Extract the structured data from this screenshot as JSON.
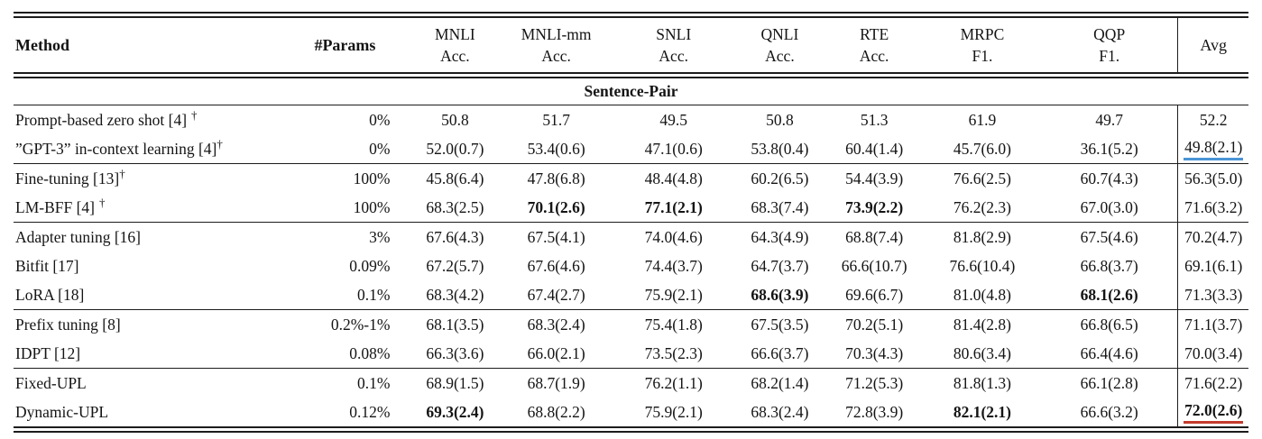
{
  "page": {
    "background": "#ffffff",
    "text_color": "#141414",
    "rule_color": "#1c1c1c"
  },
  "highlights": {
    "blue_underline": "#4a94d6",
    "red_underline": "#c53b2c"
  },
  "table": {
    "section_header": "Sentence-Pair",
    "columns": [
      {
        "id": "method",
        "label": "Method"
      },
      {
        "id": "params",
        "label": "#Params"
      },
      {
        "id": "mnli",
        "label": "MNLI",
        "sub": "Acc."
      },
      {
        "id": "mnli-mm",
        "label": "MNLI-mm",
        "sub": "Acc."
      },
      {
        "id": "snli",
        "label": "SNLI",
        "sub": "Acc."
      },
      {
        "id": "qnli",
        "label": "QNLI",
        "sub": "Acc."
      },
      {
        "id": "rte",
        "label": "RTE",
        "sub": "Acc."
      },
      {
        "id": "mrpc",
        "label": "MRPC",
        "sub": "F1."
      },
      {
        "id": "qqp",
        "label": "QQP",
        "sub": "F1."
      },
      {
        "id": "avg",
        "label": "Avg"
      }
    ],
    "groups": [
      {
        "rows": [
          {
            "method": "Prompt-based zero shot [4]",
            "dagger": "†",
            "dagger_space": true,
            "params": "0%",
            "cells": [
              {
                "t": "50.8"
              },
              {
                "t": "51.7"
              },
              {
                "t": "49.5"
              },
              {
                "t": "50.8"
              },
              {
                "t": "51.3"
              },
              {
                "t": "61.9"
              },
              {
                "t": "49.7"
              }
            ],
            "avg": {
              "t": "52.2"
            }
          },
          {
            "method": "”GPT-3” in-context learning [4]",
            "dagger": "†",
            "dagger_space": false,
            "params": "0%",
            "cells": [
              {
                "t": "52.0(0.7)"
              },
              {
                "t": "53.4(0.6)"
              },
              {
                "t": "47.1(0.6)"
              },
              {
                "t": "53.8(0.4)"
              },
              {
                "t": "60.4(1.4)"
              },
              {
                "t": "45.7(6.0)"
              },
              {
                "t": "36.1(5.2)"
              }
            ],
            "avg": {
              "t": "49.8(2.1)",
              "u": "blue"
            }
          }
        ]
      },
      {
        "rows": [
          {
            "method": "Fine-tuning [13]",
            "dagger": "†",
            "dagger_space": false,
            "params": "100%",
            "cells": [
              {
                "t": "45.8(6.4)"
              },
              {
                "t": "47.8(6.8)"
              },
              {
                "t": "48.4(4.8)"
              },
              {
                "t": "60.2(6.5)"
              },
              {
                "t": "54.4(3.9)"
              },
              {
                "t": "76.6(2.5)"
              },
              {
                "t": "60.7(4.3)"
              }
            ],
            "avg": {
              "t": "56.3(5.0)"
            }
          },
          {
            "method": "LM-BFF [4]",
            "dagger": "†",
            "dagger_space": true,
            "params": "100%",
            "cells": [
              {
                "t": "68.3(2.5)"
              },
              {
                "t": "70.1(2.6)",
                "b": true
              },
              {
                "t": "77.1(2.1)",
                "b": true
              },
              {
                "t": "68.3(7.4)"
              },
              {
                "t": "73.9(2.2)",
                "b": true
              },
              {
                "t": "76.2(2.3)"
              },
              {
                "t": "67.0(3.0)"
              }
            ],
            "avg": {
              "t": "71.6(3.2)"
            }
          }
        ]
      },
      {
        "rows": [
          {
            "method": "Adapter tuning [16]",
            "dagger": "",
            "dagger_space": false,
            "params": "3%",
            "cells": [
              {
                "t": "67.6(4.3)"
              },
              {
                "t": "67.5(4.1)"
              },
              {
                "t": "74.0(4.6)"
              },
              {
                "t": "64.3(4.9)"
              },
              {
                "t": "68.8(7.4)"
              },
              {
                "t": "81.8(2.9)"
              },
              {
                "t": "67.5(4.6)"
              }
            ],
            "avg": {
              "t": "70.2(4.7)"
            }
          },
          {
            "method": "Bitfit [17]",
            "dagger": "",
            "dagger_space": false,
            "params": "0.09%",
            "cells": [
              {
                "t": "67.2(5.7)"
              },
              {
                "t": "67.6(4.6)"
              },
              {
                "t": "74.4(3.7)"
              },
              {
                "t": "64.7(3.7)"
              },
              {
                "t": "66.6(10.7)"
              },
              {
                "t": "76.6(10.4)"
              },
              {
                "t": "66.8(3.7)"
              }
            ],
            "avg": {
              "t": "69.1(6.1)"
            }
          },
          {
            "method": "LoRA [18]",
            "dagger": "",
            "dagger_space": false,
            "params": "0.1%",
            "cells": [
              {
                "t": "68.3(4.2)"
              },
              {
                "t": "67.4(2.7)"
              },
              {
                "t": "75.9(2.1)"
              },
              {
                "t": "68.6(3.9)",
                "b": true
              },
              {
                "t": "69.6(6.7)"
              },
              {
                "t": "81.0(4.8)"
              },
              {
                "t": "68.1(2.6)",
                "b": true
              }
            ],
            "avg": {
              "t": "71.3(3.3)"
            }
          }
        ]
      },
      {
        "rows": [
          {
            "method": "Prefix tuning [8]",
            "dagger": "",
            "dagger_space": false,
            "params": "0.2%-1%",
            "cells": [
              {
                "t": "68.1(3.5)"
              },
              {
                "t": "68.3(2.4)"
              },
              {
                "t": "75.4(1.8)"
              },
              {
                "t": "67.5(3.5)"
              },
              {
                "t": "70.2(5.1)"
              },
              {
                "t": "81.4(2.8)"
              },
              {
                "t": "66.8(6.5)"
              }
            ],
            "avg": {
              "t": "71.1(3.7)"
            }
          },
          {
            "method": "IDPT [12]",
            "dagger": "",
            "dagger_space": false,
            "params": "0.08%",
            "cells": [
              {
                "t": "66.3(3.6)"
              },
              {
                "t": "66.0(2.1)"
              },
              {
                "t": "73.5(2.3)"
              },
              {
                "t": "66.6(3.7)"
              },
              {
                "t": "70.3(4.3)"
              },
              {
                "t": "80.6(3.4)"
              },
              {
                "t": "66.4(4.6)"
              }
            ],
            "avg": {
              "t": "70.0(3.4)"
            }
          }
        ]
      },
      {
        "rows": [
          {
            "method": "Fixed-UPL",
            "dagger": "",
            "dagger_space": false,
            "params": "0.1%",
            "cells": [
              {
                "t": "68.9(1.5)"
              },
              {
                "t": "68.7(1.9)"
              },
              {
                "t": "76.2(1.1)"
              },
              {
                "t": "68.2(1.4)"
              },
              {
                "t": "71.2(5.3)"
              },
              {
                "t": "81.8(1.3)"
              },
              {
                "t": "66.1(2.8)"
              }
            ],
            "avg": {
              "t": "71.6(2.2)"
            }
          },
          {
            "method": "Dynamic-UPL",
            "dagger": "",
            "dagger_space": false,
            "params": "0.12%",
            "cells": [
              {
                "t": "69.3(2.4)",
                "b": true
              },
              {
                "t": "68.8(2.2)"
              },
              {
                "t": "75.9(2.1)"
              },
              {
                "t": "68.3(2.4)"
              },
              {
                "t": "72.8(3.9)"
              },
              {
                "t": "82.1(2.1)",
                "b": true
              },
              {
                "t": "66.6(3.2)"
              }
            ],
            "avg": {
              "t": "72.0(2.6)",
              "b": true,
              "u": "red"
            }
          }
        ]
      }
    ]
  }
}
